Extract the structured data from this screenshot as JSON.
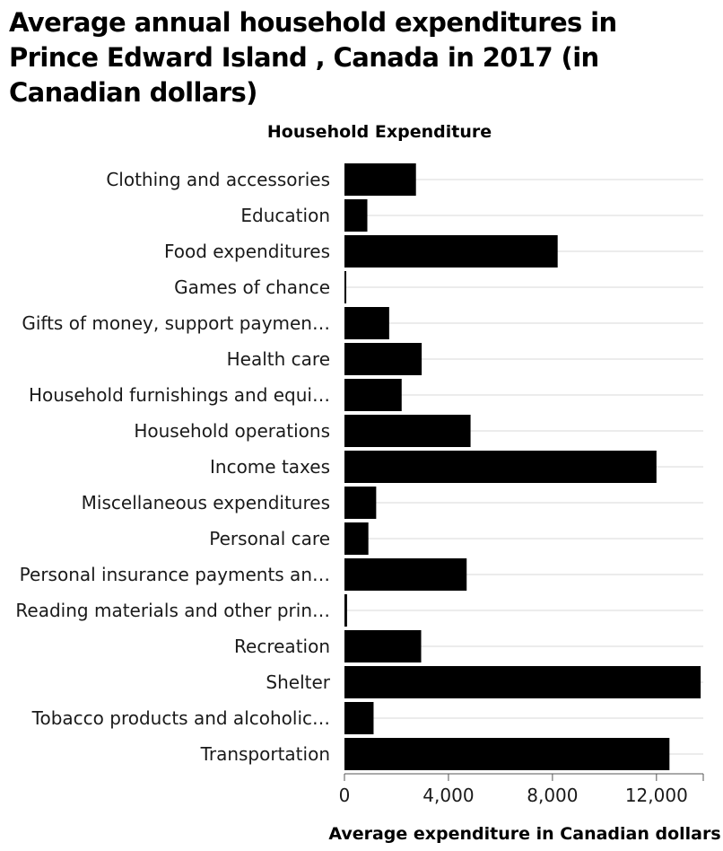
{
  "chart_data": {
    "type": "bar",
    "orientation": "horizontal",
    "title": "Average annual household expenditures in Prince Edward Island , Canada in 2017 (in Canadian dollars)",
    "xlabel": "Average expenditure in Canadian dollars",
    "ylabel": "Household Expenditure",
    "xlim": [
      0,
      13800
    ],
    "xticks": [
      0,
      4000,
      8000,
      12000
    ],
    "xtick_labels": [
      "0",
      "4,000",
      "8,000",
      "12,000"
    ],
    "grid": "vertical",
    "bar_color": "#000000",
    "categories": [
      "Clothing and accessories",
      "Education",
      "Food expenditures",
      "Games of chance",
      "Gifts of money, support paymen…",
      "Health care",
      "Household furnishings and equi…",
      "Household operations",
      "Income taxes",
      "Miscellaneous expenditures",
      "Personal care",
      "Personal insurance payments an…",
      "Reading materials and other prin…",
      "Recreation",
      "Shelter",
      "Tobacco products and alcoholic…",
      "Transportation"
    ],
    "values": [
      2750,
      880,
      8200,
      70,
      1720,
      2970,
      2200,
      4850,
      12000,
      1220,
      920,
      4700,
      100,
      2950,
      13700,
      1120,
      12500
    ]
  }
}
